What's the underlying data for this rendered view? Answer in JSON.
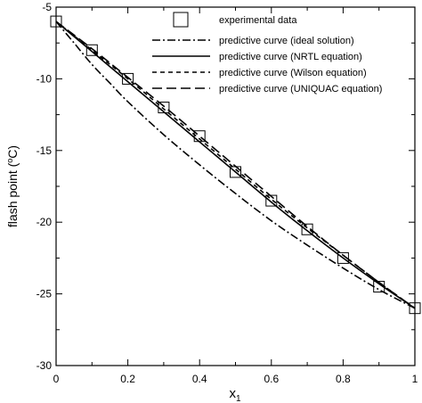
{
  "chart_data": {
    "type": "line",
    "xlabel": "x",
    "xlabel_subscript": "1",
    "ylabel_prefix": "flash point (",
    "ylabel_superscript": "o",
    "ylabel_suffix": "C)",
    "xlim": [
      0,
      1
    ],
    "ylim": [
      -30,
      -5
    ],
    "x_ticks": [
      0,
      0.2,
      0.4,
      0.6,
      0.8,
      1
    ],
    "x_tick_labels": [
      "0",
      "0.2",
      "0.4",
      "0.6",
      "0.8",
      "1"
    ],
    "y_ticks": [
      -30,
      -25,
      -20,
      -15,
      -10,
      -5
    ],
    "y_tick_labels": [
      "-30",
      "-25",
      "-20",
      "-15",
      "-10",
      "-5"
    ],
    "grid": false,
    "legend_position": "top-right",
    "legend": [
      "experimental data",
      "predictive curve (ideal solution)",
      "predictive curve (NRTL equation)",
      "predictive curve (Wilson equation)",
      "predictive curve (UNIQUAC equation)"
    ],
    "experimental": {
      "x": [
        0,
        0.1,
        0.2,
        0.3,
        0.4,
        0.5,
        0.6,
        0.7,
        0.8,
        0.9,
        1.0
      ],
      "y": [
        -6.0,
        -8.0,
        -10.0,
        -12.0,
        -14.0,
        -16.5,
        -18.5,
        -20.5,
        -22.5,
        -24.5,
        -26.0
      ]
    },
    "series": [
      {
        "style": "dash-dot",
        "x": [
          0,
          0.05,
          0.1,
          0.15,
          0.2,
          0.3,
          0.4,
          0.5,
          0.6,
          0.7,
          0.8,
          0.9,
          1.0
        ],
        "y": [
          -6.0,
          -7.5,
          -9.0,
          -10.3,
          -11.6,
          -13.9,
          -16.0,
          -18.0,
          -19.9,
          -21.6,
          -23.2,
          -24.7,
          -26.0
        ]
      },
      {
        "style": "solid",
        "x": [
          0,
          0.1,
          0.2,
          0.3,
          0.4,
          0.5,
          0.6,
          0.7,
          0.8,
          0.9,
          1.0
        ],
        "y": [
          -6.0,
          -8.1,
          -10.2,
          -12.3,
          -14.4,
          -16.5,
          -18.6,
          -20.6,
          -22.5,
          -24.3,
          -26.0
        ]
      },
      {
        "style": "short-dash",
        "x": [
          0,
          0.1,
          0.2,
          0.3,
          0.4,
          0.5,
          0.6,
          0.7,
          0.8,
          0.9,
          1.0
        ],
        "y": [
          -6.0,
          -8.0,
          -10.0,
          -12.1,
          -14.2,
          -16.3,
          -18.4,
          -20.4,
          -22.3,
          -24.2,
          -26.0
        ]
      },
      {
        "style": "long-dash",
        "x": [
          0,
          0.1,
          0.2,
          0.3,
          0.4,
          0.5,
          0.6,
          0.7,
          0.8,
          0.9,
          1.0
        ],
        "y": [
          -6.0,
          -7.9,
          -9.9,
          -11.9,
          -14.0,
          -16.1,
          -18.2,
          -20.3,
          -22.3,
          -24.2,
          -26.0
        ]
      }
    ]
  }
}
